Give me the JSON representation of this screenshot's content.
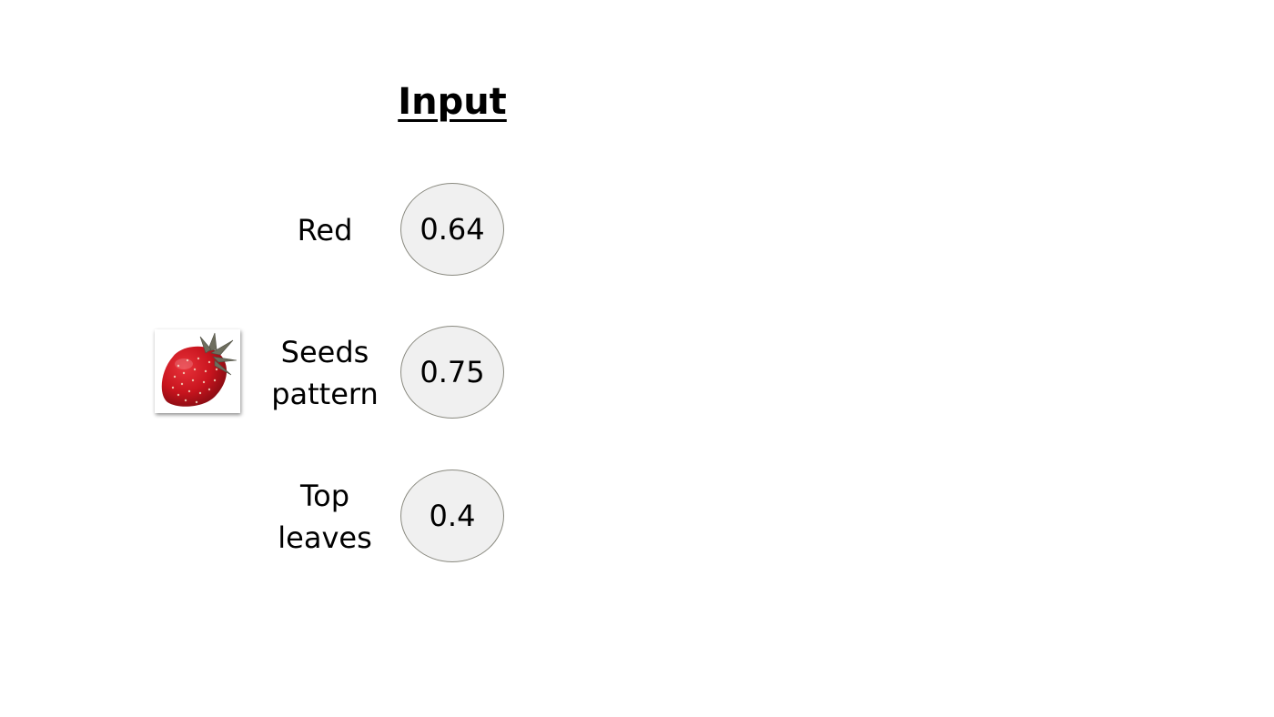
{
  "diagram": {
    "title": "Input",
    "inputs": [
      {
        "label_lines": [
          "Red"
        ],
        "value": "0.64"
      },
      {
        "label_lines": [
          "Seeds",
          "pattern"
        ],
        "value": "0.75"
      },
      {
        "label_lines": [
          "Top",
          "leaves"
        ],
        "value": "0.4"
      }
    ],
    "image_icon": "strawberry-image",
    "colors": {
      "node_fill": "#f0f0f0",
      "node_stroke": "#8a8a80",
      "strawberry_red": "#c8141e",
      "leaf_gray": "#6e6e5e"
    }
  }
}
